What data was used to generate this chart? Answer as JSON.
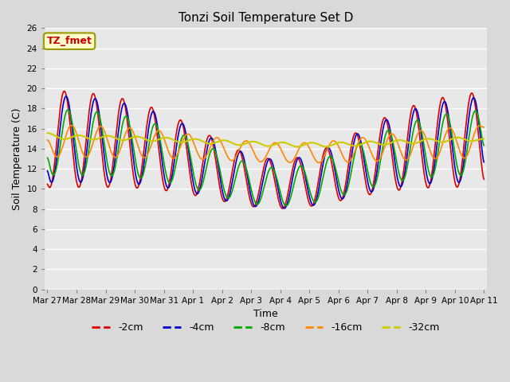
{
  "title": "Tonzi Soil Temperature Set D",
  "xlabel": "Time",
  "ylabel": "Soil Temperature (C)",
  "ylim": [
    0,
    26
  ],
  "yticks": [
    0,
    2,
    4,
    6,
    8,
    10,
    12,
    14,
    16,
    18,
    20,
    22,
    24,
    26
  ],
  "bg_color": "#d9d9d9",
  "plot_bg_color": "#e8e8e8",
  "grid_color": "white",
  "annotation_text": "TZ_fmet",
  "annotation_bg": "#ffffcc",
  "annotation_border": "#999900",
  "annotation_text_color": "#cc0000",
  "line_colors": {
    "-2cm": "#dd0000",
    "-4cm": "#0000cc",
    "-8cm": "#00aa00",
    "-16cm": "#ff8800",
    "-32cm": "#cccc00"
  },
  "xtick_labels": [
    "Mar 27",
    "Mar 28",
    "Mar 29",
    "Mar 30",
    "Mar 31",
    "Apr 1",
    "Apr 2",
    "Apr 3",
    "Apr 4",
    "Apr 5",
    "Apr 6",
    "Apr 7",
    "Apr 8",
    "Apr 9",
    "Apr 10",
    "Apr 11"
  ]
}
